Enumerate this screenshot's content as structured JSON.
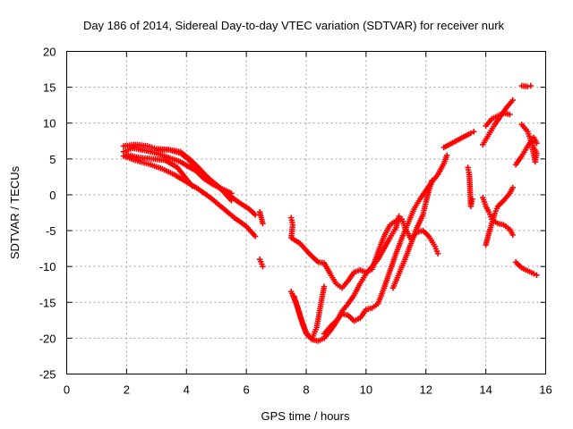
{
  "chart_data": {
    "type": "scatter",
    "title": "Day 186 of 2014, Sidereal Day-to-day VTEC variation (SDTVAR) for receiver nurk",
    "xlabel": "GPS time / hours",
    "ylabel": "SDTVAR / TECUs",
    "xlim": [
      0,
      16
    ],
    "ylim": [
      -25,
      20
    ],
    "xticks": [
      "0",
      "2",
      "4",
      "6",
      "8",
      "10",
      "12",
      "14",
      "16"
    ],
    "yticks": [
      "20",
      "15",
      "10",
      "5",
      "0",
      "-5",
      "-10",
      "-15",
      "-20",
      "-25"
    ],
    "grid": true,
    "marker": "+",
    "color": "#ff0000",
    "series": [
      {
        "points": [
          [
            1.9,
            6.0
          ],
          [
            2.2,
            6.5
          ],
          [
            2.6,
            6.2
          ],
          [
            3.0,
            5.8
          ],
          [
            3.4,
            5.2
          ],
          [
            3.8,
            4.6
          ],
          [
            4.2,
            3.6
          ],
          [
            4.6,
            2.8
          ],
          [
            5.0,
            1.4
          ],
          [
            5.4,
            0.0
          ],
          [
            5.8,
            -1.2
          ],
          [
            6.1,
            -2.0
          ],
          [
            6.3,
            -2.8
          ]
        ]
      },
      {
        "points": [
          [
            1.9,
            5.4
          ],
          [
            2.3,
            4.8
          ],
          [
            2.8,
            4.2
          ],
          [
            3.2,
            3.6
          ],
          [
            3.6,
            2.8
          ],
          [
            4.0,
            1.8
          ],
          [
            4.4,
            0.8
          ],
          [
            4.8,
            -0.4
          ],
          [
            5.2,
            -1.8
          ],
          [
            5.6,
            -3.2
          ],
          [
            6.0,
            -4.4
          ],
          [
            6.3,
            -5.8
          ]
        ]
      },
      {
        "points": [
          [
            1.9,
            6.8
          ],
          [
            2.3,
            7.0
          ],
          [
            2.7,
            6.8
          ],
          [
            3.0,
            6.4
          ],
          [
            3.4,
            6.3
          ],
          [
            3.8,
            5.8
          ],
          [
            4.1,
            4.8
          ],
          [
            4.3,
            3.4
          ],
          [
            4.6,
            2.2
          ],
          [
            4.9,
            1.4
          ],
          [
            5.2,
            0.8
          ],
          [
            5.5,
            0.2
          ]
        ]
      },
      {
        "points": [
          [
            2.0,
            5.6
          ],
          [
            2.4,
            5.2
          ],
          [
            2.9,
            5.0
          ],
          [
            3.3,
            4.8
          ],
          [
            3.7,
            3.8
          ],
          [
            4.0,
            2.2
          ],
          [
            4.2,
            1.2
          ]
        ]
      },
      {
        "points": [
          [
            3.0,
            6.2
          ],
          [
            3.4,
            6.3
          ],
          [
            3.8,
            6.0
          ],
          [
            4.1,
            5.0
          ],
          [
            4.4,
            3.8
          ],
          [
            4.8,
            2.0
          ],
          [
            5.2,
            0.6
          ],
          [
            5.5,
            -0.8
          ]
        ]
      },
      {
        "points": [
          [
            6.45,
            -2.4
          ],
          [
            6.5,
            -3.2
          ],
          [
            6.55,
            -4.0
          ],
          [
            6.45,
            -9.0
          ],
          [
            6.55,
            -10.0
          ]
        ]
      },
      {
        "points": [
          [
            7.5,
            -3.2
          ],
          [
            7.55,
            -4.2
          ],
          [
            7.5,
            -6.0
          ],
          [
            7.8,
            -6.8
          ],
          [
            8.1,
            -8.2
          ],
          [
            8.4,
            -9.4
          ],
          [
            8.6,
            -9.5
          ],
          [
            8.8,
            -11.0
          ],
          [
            9.0,
            -12.4
          ],
          [
            9.2,
            -13.0
          ],
          [
            9.4,
            -12.0
          ],
          [
            9.6,
            -10.8
          ],
          [
            9.8,
            -10.5
          ],
          [
            10.0,
            -10.8
          ],
          [
            10.2,
            -10.4
          ],
          [
            10.4,
            -8.0
          ],
          [
            10.6,
            -5.8
          ],
          [
            10.8,
            -4.2
          ],
          [
            11.0,
            -3.6
          ],
          [
            11.2,
            -3.4
          ],
          [
            11.3,
            -4.6
          ],
          [
            11.5,
            -6.2
          ],
          [
            11.7,
            -5.2
          ],
          [
            11.9,
            -5.0
          ],
          [
            12.1,
            -5.8
          ],
          [
            12.3,
            -7.2
          ],
          [
            12.4,
            -8.2
          ]
        ]
      },
      {
        "points": [
          [
            7.5,
            -13.5
          ],
          [
            7.7,
            -15.5
          ],
          [
            7.9,
            -18.2
          ],
          [
            8.05,
            -19.6
          ],
          [
            8.2,
            -20.0
          ],
          [
            8.35,
            -18.5
          ],
          [
            8.5,
            -15.0
          ],
          [
            8.6,
            -12.8
          ]
        ]
      },
      {
        "points": [
          [
            7.6,
            -14.2
          ],
          [
            7.8,
            -17.0
          ],
          [
            8.0,
            -19.4
          ],
          [
            8.2,
            -20.2
          ],
          [
            8.4,
            -20.4
          ],
          [
            8.6,
            -20.0
          ],
          [
            8.8,
            -19.0
          ],
          [
            9.0,
            -17.8
          ],
          [
            9.2,
            -16.2
          ],
          [
            9.4,
            -15.2
          ],
          [
            9.6,
            -14.0
          ],
          [
            9.8,
            -12.4
          ],
          [
            10.0,
            -11.0
          ],
          [
            10.2,
            -10.0
          ],
          [
            10.4,
            -9.0
          ],
          [
            10.6,
            -7.5
          ],
          [
            10.8,
            -6.0
          ],
          [
            11.0,
            -4.6
          ],
          [
            11.1,
            -3.0
          ]
        ]
      },
      {
        "points": [
          [
            8.6,
            -19.4
          ],
          [
            8.8,
            -18.4
          ],
          [
            9.0,
            -17.6
          ],
          [
            9.2,
            -16.6
          ],
          [
            9.4,
            -16.8
          ],
          [
            9.6,
            -17.6
          ],
          [
            9.8,
            -17.2
          ],
          [
            10.0,
            -16.0
          ],
          [
            10.2,
            -15.8
          ],
          [
            10.4,
            -15.2
          ],
          [
            10.6,
            -13.0
          ],
          [
            10.8,
            -10.6
          ],
          [
            11.0,
            -8.2
          ],
          [
            11.2,
            -6.0
          ],
          [
            11.4,
            -4.0
          ],
          [
            11.6,
            -2.0
          ],
          [
            11.8,
            -0.6
          ],
          [
            12.0,
            0.6
          ],
          [
            12.2,
            1.8
          ],
          [
            12.4,
            2.8
          ],
          [
            12.6,
            4.4
          ],
          [
            12.7,
            5.5
          ]
        ]
      },
      {
        "points": [
          [
            10.9,
            -13.0
          ],
          [
            11.1,
            -11.0
          ],
          [
            11.3,
            -9.0
          ],
          [
            11.5,
            -6.8
          ],
          [
            11.7,
            -4.6
          ],
          [
            11.9,
            -2.8
          ],
          [
            12.0,
            -1.0
          ],
          [
            12.1,
            0.6
          ],
          [
            12.2,
            2.0
          ]
        ]
      },
      {
        "points": [
          [
            12.6,
            6.6
          ],
          [
            13.5,
            8.6
          ],
          [
            13.6,
            8.8
          ]
        ]
      },
      {
        "points": [
          [
            13.4,
            3.8
          ],
          [
            13.45,
            2.8
          ],
          [
            13.5,
            -1.6
          ],
          [
            13.55,
            -0.6
          ]
        ]
      },
      {
        "points": [
          [
            13.9,
            -0.4
          ],
          [
            14.0,
            -1.6
          ],
          [
            14.1,
            -2.4
          ],
          [
            14.2,
            -3.4
          ],
          [
            14.4,
            -4.0
          ],
          [
            14.6,
            -4.2
          ],
          [
            14.8,
            -4.8
          ],
          [
            14.9,
            -5.6
          ]
        ]
      },
      {
        "points": [
          [
            14.0,
            -7.0
          ],
          [
            14.1,
            -5.4
          ],
          [
            14.2,
            -4.0
          ],
          [
            14.3,
            -2.6
          ],
          [
            14.4,
            -1.6
          ],
          [
            14.6,
            -0.8
          ],
          [
            14.8,
            0.2
          ],
          [
            14.9,
            1.0
          ]
        ]
      },
      {
        "points": [
          [
            13.9,
            7.0
          ],
          [
            14.1,
            8.4
          ],
          [
            14.3,
            9.8
          ],
          [
            14.5,
            11.0
          ],
          [
            14.7,
            12.2
          ],
          [
            14.9,
            13.2
          ]
        ]
      },
      {
        "points": [
          [
            14.0,
            9.6
          ],
          [
            14.2,
            10.6
          ],
          [
            14.4,
            11.0
          ],
          [
            14.6,
            11.4
          ],
          [
            14.8,
            11.2
          ]
        ]
      },
      {
        "points": [
          [
            15.2,
            15.2
          ],
          [
            15.4,
            15.1
          ],
          [
            15.5,
            15.2
          ]
        ]
      },
      {
        "points": [
          [
            15.2,
            9.8
          ],
          [
            15.4,
            8.8
          ],
          [
            15.5,
            7.6
          ],
          [
            15.6,
            6.6
          ],
          [
            15.7,
            5.8
          ],
          [
            15.65,
            4.6
          ],
          [
            15.55,
            6.6
          ]
        ]
      },
      {
        "points": [
          [
            15.0,
            4.2
          ],
          [
            15.2,
            5.4
          ],
          [
            15.4,
            6.8
          ],
          [
            15.6,
            8.0
          ],
          [
            15.7,
            7.2
          ]
        ]
      },
      {
        "points": [
          [
            15.0,
            -9.4
          ],
          [
            15.2,
            -10.2
          ],
          [
            15.4,
            -10.6
          ],
          [
            15.6,
            -11.0
          ],
          [
            15.7,
            -11.2
          ]
        ]
      }
    ]
  }
}
